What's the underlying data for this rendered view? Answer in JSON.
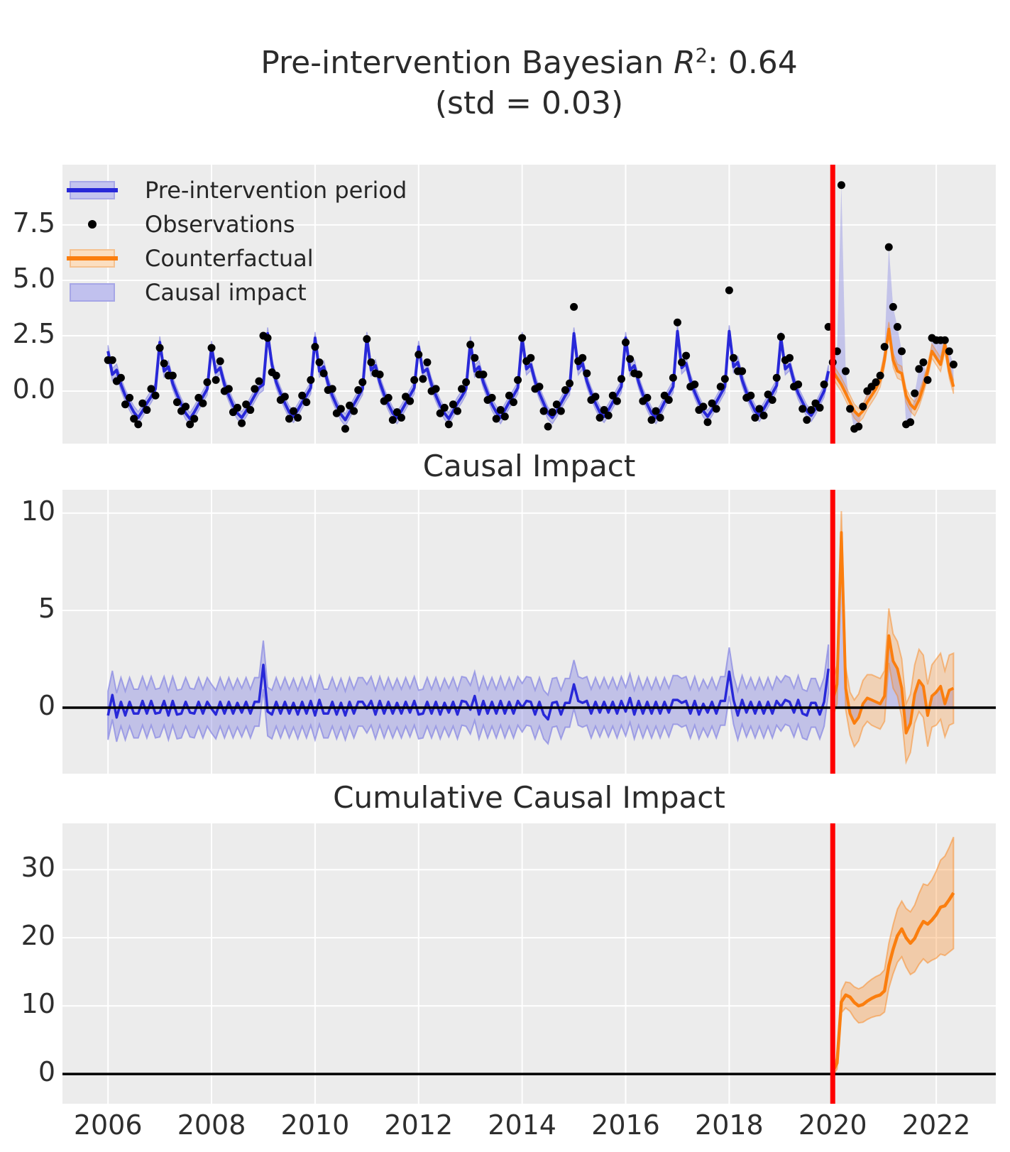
{
  "title": {
    "line1_prefix": "Pre-intervention Bayesian ",
    "line1_r": "R",
    "line1_sup": "2",
    "line1_suffix": ": 0.64",
    "line2": "(std = 0.03)"
  },
  "panels": {
    "top": {
      "y_tick_labels": [
        "0.0",
        "2.5",
        "5.0",
        "7.5"
      ],
      "y_tick_values": [
        0,
        2.5,
        5,
        7.5
      ],
      "ylim": [
        -2.37,
        10.22
      ]
    },
    "middle": {
      "title": "Causal Impact",
      "y_tick_labels": [
        "0",
        "5",
        "10"
      ],
      "y_tick_values": [
        0,
        5,
        10
      ],
      "ylim": [
        -3.39,
        11.2
      ]
    },
    "bottom": {
      "title": "Cumulative Causal Impact",
      "y_tick_labels": [
        "0",
        "10",
        "20",
        "30"
      ],
      "y_tick_values": [
        0,
        10,
        20,
        30
      ],
      "ylim": [
        -4.37,
        36.8
      ]
    }
  },
  "x_axis": {
    "tick_labels": [
      "2006",
      "2008",
      "2010",
      "2012",
      "2014",
      "2016",
      "2018",
      "2020",
      "2022"
    ],
    "tick_values": [
      2006,
      2008,
      2010,
      2012,
      2014,
      2016,
      2018,
      2020,
      2022
    ],
    "xlim": [
      2005.12,
      2023.15
    ]
  },
  "legend": {
    "items": [
      {
        "label": "Pre-intervention period",
        "type": "line-band"
      },
      {
        "label": "Observations",
        "type": "dot"
      },
      {
        "label": "Counterfactual",
        "type": "line-band-orange"
      },
      {
        "label": "Causal impact",
        "type": "patch"
      }
    ]
  },
  "colors": {
    "background": "#ececec",
    "gridline": "#ffffff",
    "blue_line": "#2828d8",
    "blue_band": "#8f8fe3",
    "causal_fill": "#9a9ae6",
    "orange_line": "#fb7e0e",
    "red_line": "#ff0000",
    "black_line": "#000000",
    "dot": "#000000",
    "text": "#2e2e2e"
  },
  "intervention_x": 2020.0,
  "chart_data": {
    "type": "line",
    "x_start": 2006.0,
    "x_step_years": 0.0833333,
    "pre_fit": [
      1.8,
      0.75,
      0.95,
      0.3,
      -0.2,
      -0.6,
      -0.95,
      -1.2,
      -0.9,
      -0.55,
      -0.25,
      0.1,
      2.2,
      0.9,
      1.1,
      0.35,
      -0.15,
      -0.6,
      -1.0,
      -1.25,
      -0.95,
      -0.6,
      -0.25,
      0.1,
      2.0,
      0.85,
      1.05,
      0.3,
      -0.2,
      -0.65,
      -1.0,
      -1.2,
      -0.9,
      -0.55,
      -0.2,
      0.15,
      0.3,
      2.6,
      1.2,
      0.4,
      -0.1,
      -0.55,
      -0.95,
      -1.15,
      -0.85,
      -0.5,
      -0.2,
      0.15,
      2.4,
      0.9,
      1.1,
      0.35,
      -0.2,
      -0.65,
      -1.05,
      -1.3,
      -0.95,
      -0.6,
      -0.25,
      0.1,
      2.4,
      0.95,
      1.15,
      0.4,
      -0.15,
      -0.6,
      -1.0,
      -1.2,
      -0.9,
      -0.55,
      -0.2,
      0.15,
      2.0,
      0.85,
      1.0,
      0.3,
      -0.2,
      -0.65,
      -1.0,
      -1.25,
      -0.9,
      -0.55,
      -0.25,
      0.1,
      2.2,
      0.9,
      1.1,
      0.4,
      -0.1,
      -0.6,
      -0.95,
      -1.2,
      -0.85,
      -0.5,
      -0.2,
      0.15,
      2.4,
      1.0,
      1.2,
      0.45,
      -0.1,
      -0.55,
      -1.0,
      -1.2,
      -0.9,
      -0.55,
      -0.2,
      0.1,
      2.6,
      1.0,
      1.25,
      0.45,
      -0.1,
      -0.55,
      -0.95,
      -1.15,
      -0.85,
      -0.5,
      -0.15,
      0.2,
      2.4,
      0.95,
      1.15,
      0.4,
      -0.15,
      -0.6,
      -1.0,
      -1.2,
      -0.9,
      -0.5,
      -0.15,
      0.2,
      2.7,
      1.05,
      1.25,
      0.5,
      -0.05,
      -0.5,
      -0.9,
      -1.15,
      -0.85,
      -0.5,
      -0.15,
      0.2,
      2.7,
      1.1,
      1.3,
      0.5,
      -0.05,
      -0.5,
      -0.9,
      -1.1,
      -0.8,
      -0.45,
      -0.1,
      0.25,
      2.4,
      1.0,
      1.2,
      0.45,
      -0.1,
      -0.5,
      -0.9,
      -1.1,
      -0.8,
      -0.4,
      0.0,
      0.9
    ],
    "pre_band_hw": 0.27,
    "observations": [
      1.4,
      1.4,
      0.45,
      0.6,
      -0.6,
      -0.3,
      -1.25,
      -1.5,
      -0.55,
      -0.85,
      0.1,
      -0.2,
      1.95,
      1.25,
      0.7,
      0.7,
      -0.5,
      -0.9,
      -0.7,
      -1.5,
      -1.25,
      -0.3,
      -0.55,
      0.4,
      1.95,
      0.5,
      1.35,
      0.0,
      0.1,
      -0.95,
      -0.75,
      -1.45,
      -0.6,
      -0.85,
      0.1,
      0.45,
      2.5,
      2.4,
      0.85,
      0.7,
      -0.4,
      -0.25,
      -1.25,
      -0.9,
      -1.2,
      -0.2,
      -0.5,
      0.5,
      2.0,
      1.3,
      0.8,
      0.05,
      0.1,
      -1.0,
      -0.8,
      -1.7,
      -0.65,
      -0.9,
      0.05,
      0.4,
      2.35,
      1.3,
      0.8,
      0.75,
      -0.45,
      -0.3,
      -1.3,
      -0.95,
      -1.2,
      -0.25,
      -0.45,
      0.5,
      1.65,
      0.55,
      1.3,
      0.0,
      0.1,
      -1.0,
      -0.75,
      -1.5,
      -0.6,
      -0.9,
      0.1,
      0.4,
      2.1,
      1.5,
      0.75,
      0.75,
      -0.4,
      -0.3,
      -1.25,
      -0.85,
      -1.15,
      -0.2,
      -0.5,
      0.5,
      2.4,
      1.35,
      1.5,
      0.1,
      0.2,
      -0.9,
      -1.6,
      -0.95,
      -0.6,
      -0.9,
      0.05,
      0.35,
      3.8,
      1.35,
      1.5,
      0.8,
      -0.4,
      -0.25,
      -1.2,
      -0.85,
      -1.1,
      -0.2,
      -0.45,
      0.55,
      2.2,
      1.45,
      0.8,
      0.75,
      -0.45,
      -0.3,
      -1.3,
      -0.9,
      -1.2,
      -0.2,
      -0.4,
      0.6,
      3.1,
      1.3,
      1.6,
      0.2,
      0.3,
      -0.85,
      -0.7,
      -1.4,
      -0.55,
      -0.8,
      0.2,
      0.55,
      4.55,
      1.5,
      0.9,
      0.9,
      -0.3,
      -0.2,
      -1.2,
      -0.8,
      -1.1,
      -0.15,
      -0.4,
      0.6,
      2.45,
      1.4,
      1.5,
      0.2,
      0.3,
      -0.8,
      -1.3,
      -0.85,
      -0.55,
      -0.75,
      0.3,
      2.9,
      1.3,
      1.8,
      9.3,
      0.9,
      -0.8,
      -1.7,
      -1.6,
      -0.7,
      0.0,
      0.2,
      0.4,
      0.7,
      2.0,
      6.5,
      3.8,
      2.9,
      1.8,
      -1.5,
      -1.4,
      -0.1,
      1.0,
      1.3,
      0.5,
      2.4,
      2.3,
      2.3,
      2.3,
      1.8,
      1.2
    ],
    "counterfactual": [
      0.9,
      0.6,
      0.3,
      -0.1,
      -0.5,
      -0.9,
      -1.1,
      -0.9,
      -0.5,
      -0.2,
      0.1,
      0.5,
      1.4,
      2.8,
      1.4,
      0.9,
      0.8,
      -0.2,
      -0.6,
      -0.8,
      -0.4,
      0.2,
      0.9,
      1.8,
      1.5,
      1.2,
      2.1,
      0.9,
      0.2
    ],
    "post_band_hw": 0.32,
    "impact_post": [
      0.4,
      1.2,
      9.0,
      1.0,
      -0.3,
      -0.8,
      -0.5,
      0.2,
      0.5,
      0.4,
      0.3,
      0.2,
      0.6,
      3.7,
      2.4,
      2.0,
      1.0,
      -1.3,
      -0.8,
      0.7,
      1.4,
      1.1,
      -0.4,
      0.6,
      0.8,
      1.1,
      0.2,
      0.9,
      1.0
    ],
    "impact_band_hw_pre": 1.25,
    "impact_band_hw_post": [
      0.9,
      1.0,
      1.1,
      1.1,
      1.1,
      1.2,
      1.2,
      1.2,
      1.2,
      1.3,
      1.3,
      1.3,
      1.3,
      1.4,
      1.4,
      1.4,
      1.5,
      1.5,
      1.5,
      1.5,
      1.6,
      1.6,
      1.6,
      1.6,
      1.7,
      1.7,
      1.7,
      1.8,
      1.8
    ],
    "cumulative": [
      0.4,
      1.6,
      10.6,
      11.6,
      11.3,
      10.5,
      10.0,
      10.2,
      10.7,
      11.1,
      11.4,
      11.6,
      12.2,
      15.9,
      18.3,
      20.3,
      21.3,
      20.0,
      19.2,
      19.9,
      21.3,
      22.4,
      22.0,
      22.6,
      23.4,
      24.5,
      24.7,
      25.6,
      26.6
    ],
    "cumulative_band_hw": [
      0.6,
      0.9,
      1.6,
      1.9,
      2.1,
      2.3,
      2.5,
      2.6,
      2.7,
      2.8,
      2.9,
      3.0,
      3.1,
      3.3,
      3.6,
      3.9,
      4.1,
      4.3,
      4.6,
      4.9,
      5.2,
      5.5,
      5.7,
      5.9,
      6.4,
      6.9,
      7.3,
      7.7,
      8.2
    ]
  }
}
